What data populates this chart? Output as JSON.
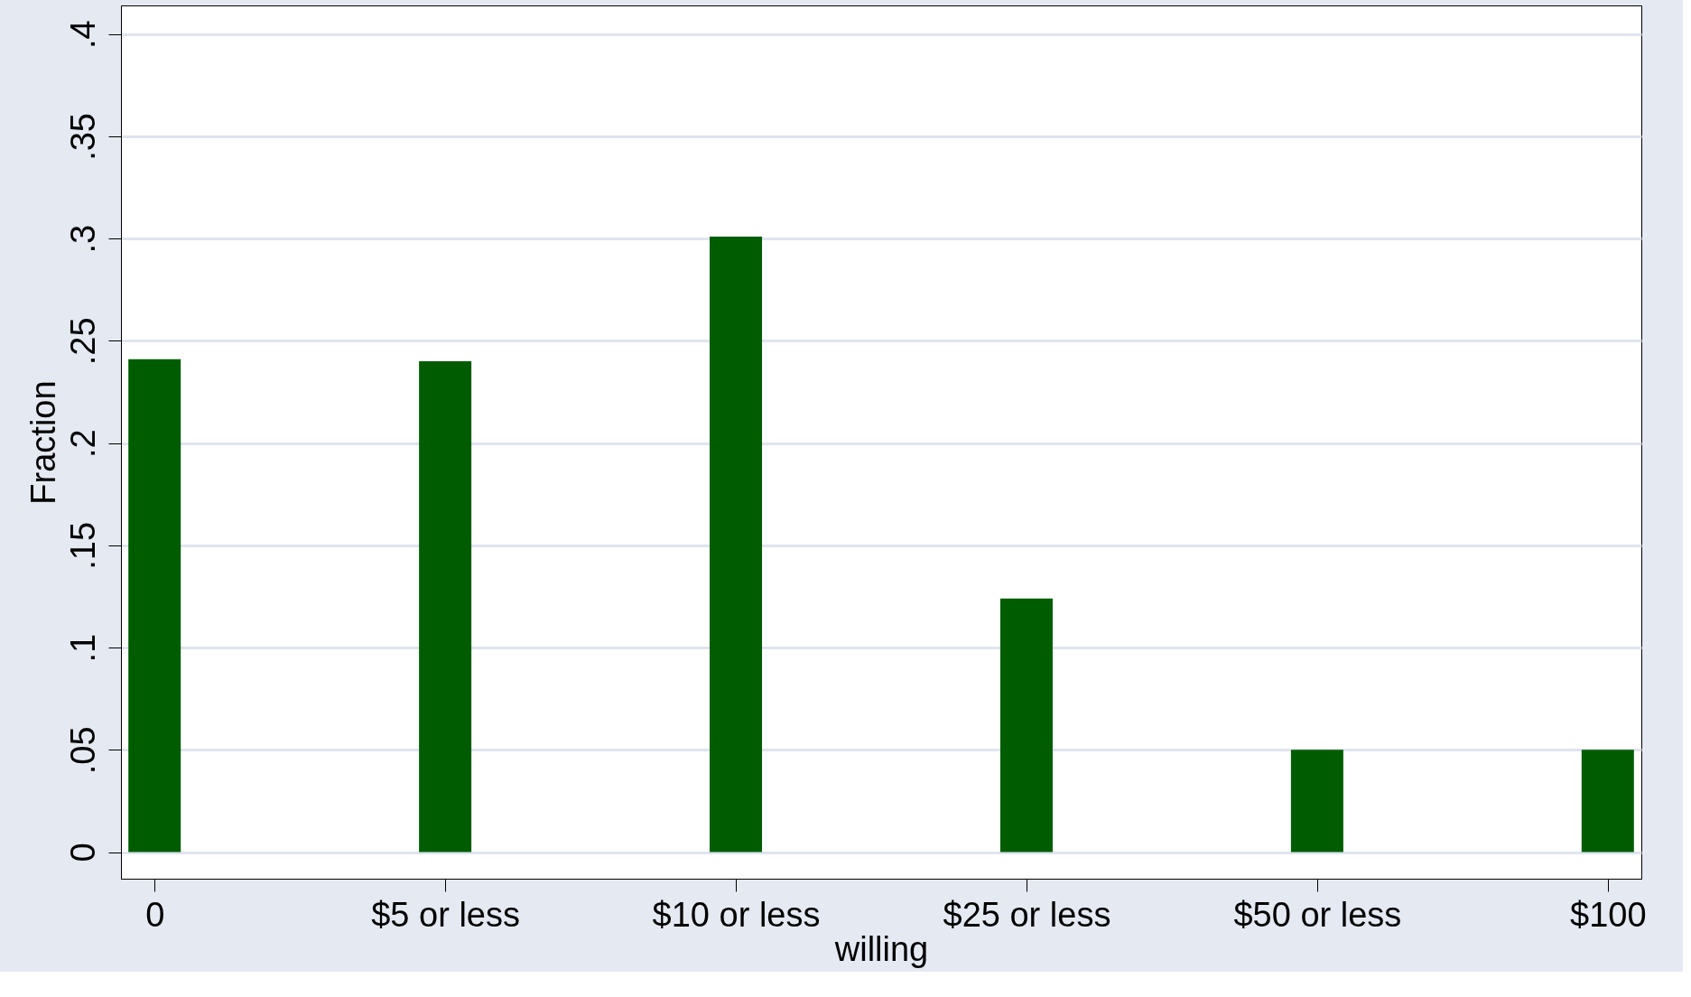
{
  "chart_data": {
    "type": "bar",
    "xlabel": "willing",
    "ylabel": "Fraction",
    "categories": [
      "0",
      "$5 or less",
      "$10 or less",
      "$25 or less",
      "$50 or less",
      "$100"
    ],
    "values": [
      0.241,
      0.24,
      0.301,
      0.124,
      0.05,
      0.05
    ],
    "color": "#005c00",
    "ylim": [
      -0.013,
      0.414
    ],
    "yticks": [
      0,
      {
        "value": 0.05,
        "label": ".05"
      },
      {
        "value": 0.1,
        "label": ".1"
      },
      {
        "value": 0.15,
        "label": ".15"
      },
      {
        "value": 0.2,
        "label": ".2"
      },
      {
        "value": 0.25,
        "label": ".25"
      },
      {
        "value": 0.3,
        "label": ".3"
      },
      {
        "value": 0.35,
        "label": ".35"
      },
      {
        "value": 0.4,
        "label": ".4"
      }
    ],
    "grid": "y"
  }
}
